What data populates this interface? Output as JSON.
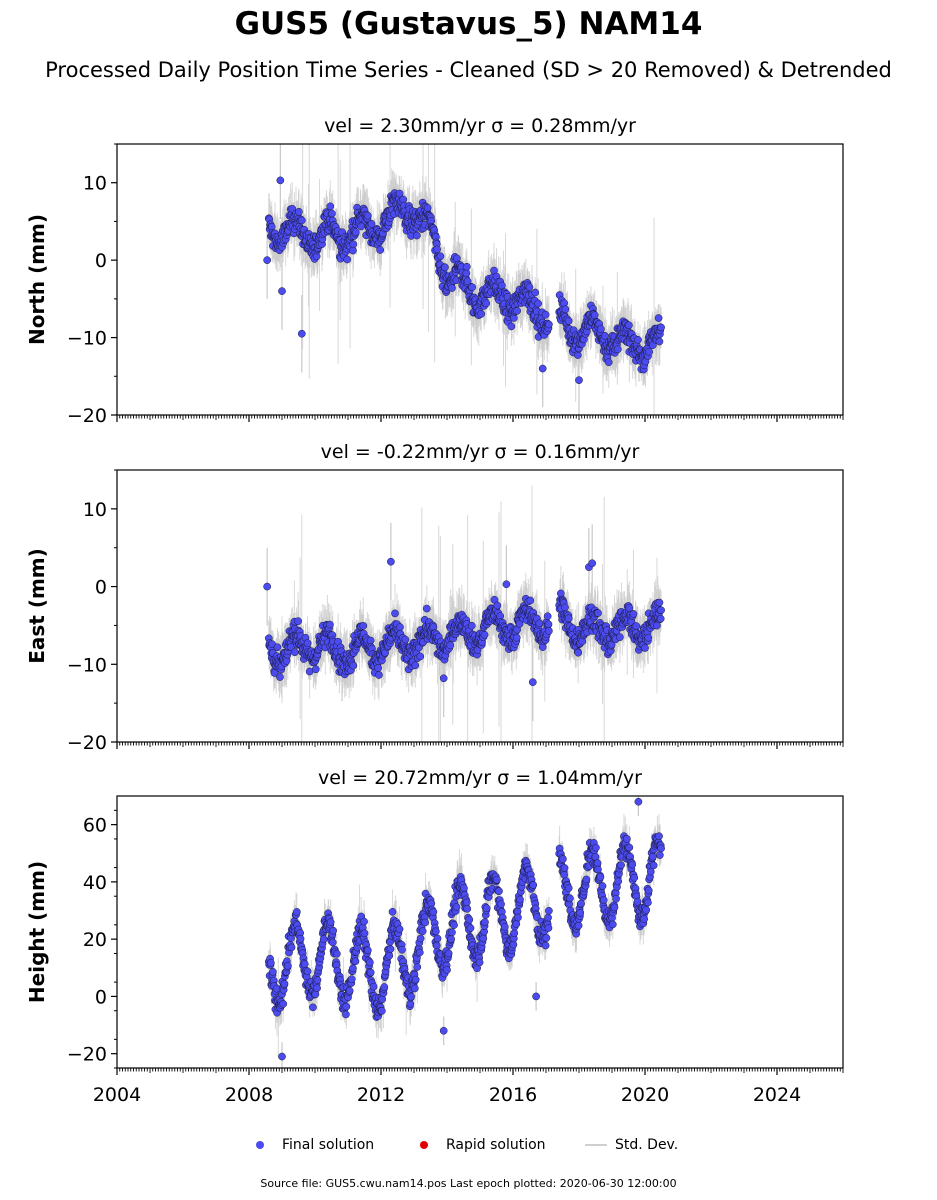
{
  "title": "GUS5 (Gustavus_5) NAM14",
  "subtitle": "Processed Daily Position Time Series - Cleaned (SD > 20 Removed) & Detrended",
  "legend": {
    "final": "Final solution",
    "rapid": "Rapid solution",
    "std": "Std. Dev."
  },
  "source_note": "Source file: GUS5.cwu.nam14.pos  Last epoch plotted: 2020-06-30 12:00:00",
  "colors": {
    "final": "#4b4bf0",
    "rapid": "#e00000",
    "stddev": "#c8c8c8",
    "marker_edge": "#1a1a3a"
  },
  "chart_data": [
    {
      "type": "scatter",
      "panel": "north",
      "title": "vel = 2.30mm/yr   σ = 0.28mm/yr",
      "ylabel": "North (mm)",
      "xlim": [
        2004,
        2026
      ],
      "ylim": [
        -20,
        15
      ],
      "yticks": [
        -20,
        -10,
        0,
        10
      ],
      "ytick_labels": [
        "−20",
        "−10",
        "0",
        "10"
      ],
      "gaps": [
        [
          2017.1,
          2017.4
        ]
      ],
      "series": [
        {
          "label": "Final solution",
          "trend_x": [
            2008.6,
            2009.0,
            2010.0,
            2011.0,
            2012.0,
            2012.8,
            2013.5,
            2014.0,
            2015.0,
            2016.0,
            2017.0,
            2017.5,
            2018.0,
            2019.0,
            2019.5,
            2020.5
          ],
          "trend_y": [
            4,
            4,
            3,
            3.5,
            4.5,
            7,
            3.5,
            -2,
            -4.5,
            -5,
            -7,
            -8,
            -9,
            -10,
            -11,
            -10.5
          ],
          "outliers": [
            {
              "x": 2008.55,
              "y": 0
            },
            {
              "x": 2008.95,
              "y": 10.3
            },
            {
              "x": 2009.0,
              "y": -4
            },
            {
              "x": 2009.6,
              "y": -9.5
            },
            {
              "x": 2016.9,
              "y": -14
            },
            {
              "x": 2018.0,
              "y": -15.5
            }
          ]
        }
      ]
    },
    {
      "type": "scatter",
      "panel": "east",
      "title": "vel = -0.22mm/yr   σ = 0.16mm/yr",
      "ylabel": "East (mm)",
      "xlim": [
        2004,
        2026
      ],
      "ylim": [
        -20,
        15
      ],
      "yticks": [
        -20,
        -10,
        0,
        10
      ],
      "ytick_labels": [
        "−20",
        "−10",
        "0",
        "10"
      ],
      "gaps": [
        [
          2017.1,
          2017.4
        ]
      ],
      "series": [
        {
          "label": "Final solution",
          "trend_x": [
            2008.6,
            2009.0,
            2010.0,
            2011.0,
            2012.0,
            2013.0,
            2014.0,
            2015.0,
            2016.0,
            2017.0,
            2017.5,
            2018.0,
            2019.0,
            2020.5
          ],
          "trend_y": [
            -8,
            -8.5,
            -7.5,
            -8.5,
            -7.5,
            -7.5,
            -6.5,
            -5.5,
            -5,
            -4.5,
            -4,
            -5.5,
            -5.5,
            -5
          ],
          "outliers": [
            {
              "x": 2008.55,
              "y": 0
            },
            {
              "x": 2012.3,
              "y": 3.2
            },
            {
              "x": 2013.9,
              "y": -11.8
            },
            {
              "x": 2016.6,
              "y": -12.3
            },
            {
              "x": 2018.3,
              "y": 2.5
            },
            {
              "x": 2018.4,
              "y": 3.0
            },
            {
              "x": 2015.8,
              "y": 0.3
            }
          ]
        }
      ]
    },
    {
      "type": "scatter",
      "panel": "height",
      "title": "vel = 20.72mm/yr   σ = 1.04mm/yr",
      "ylabel": "Height (mm)",
      "xlim": [
        2004,
        2026
      ],
      "ylim": [
        -25,
        70
      ],
      "yticks": [
        -20,
        0,
        20,
        40,
        60
      ],
      "ytick_labels": [
        "−20",
        "0",
        "20",
        "40",
        "60"
      ],
      "xticks": [
        2004,
        2008,
        2012,
        2016,
        2020,
        2024
      ],
      "xtick_labels": [
        "2004",
        "2008",
        "2012",
        "2016",
        "2020",
        "2024"
      ],
      "seasonal_amplitude": 13,
      "gaps": [
        [
          2017.1,
          2017.4
        ]
      ],
      "series": [
        {
          "label": "Final solution",
          "trend_x": [
            2008.6,
            2010.0,
            2012.0,
            2014.0,
            2016.0,
            2018.0,
            2020.5
          ],
          "trend_y": [
            10,
            14,
            8,
            24,
            30,
            38,
            42
          ],
          "outliers": [
            {
              "x": 2009.0,
              "y": -21
            },
            {
              "x": 2013.9,
              "y": -12
            },
            {
              "x": 2016.7,
              "y": 0
            },
            {
              "x": 2019.8,
              "y": 68
            }
          ]
        }
      ]
    }
  ]
}
